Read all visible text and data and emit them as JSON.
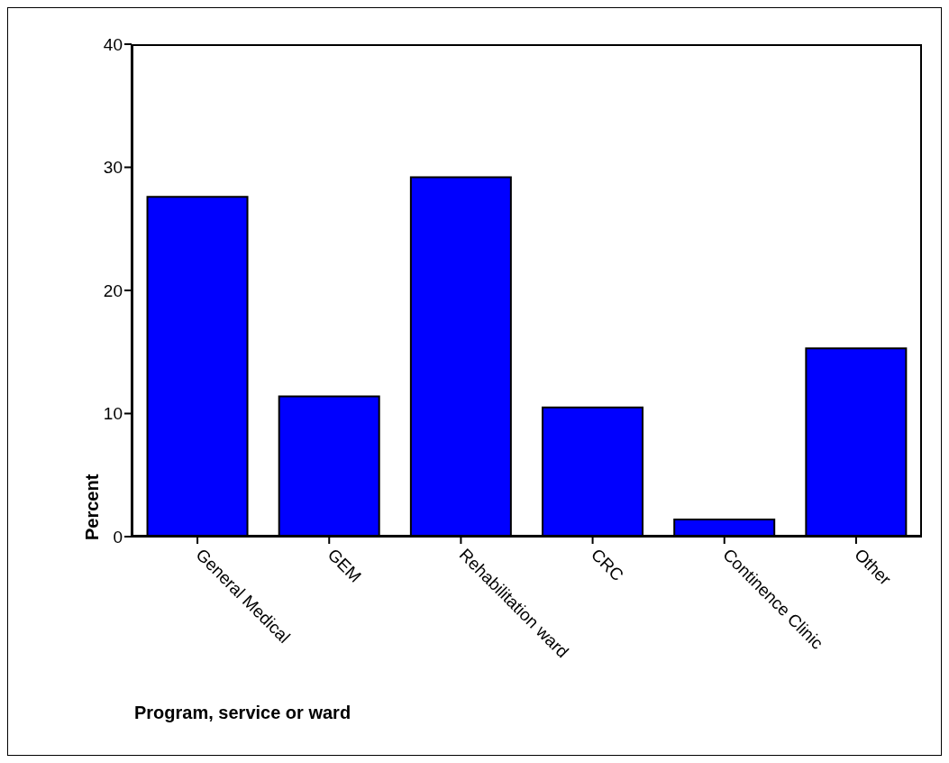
{
  "chart_data": {
    "type": "bar",
    "xlabel": "Program, service or ward",
    "ylabel": "Percent",
    "categories": [
      "General Medical",
      "GEM",
      "Rehabilitation ward",
      "CRC",
      "Continence Clinic",
      "Other"
    ],
    "values": [
      27.6,
      11.4,
      29.2,
      10.5,
      1.4,
      15.3
    ],
    "color": "#0000ff",
    "ylim": [
      0,
      40
    ],
    "yticks": [
      0,
      10,
      20,
      30,
      40
    ],
    "grid": false,
    "legend": false
  }
}
